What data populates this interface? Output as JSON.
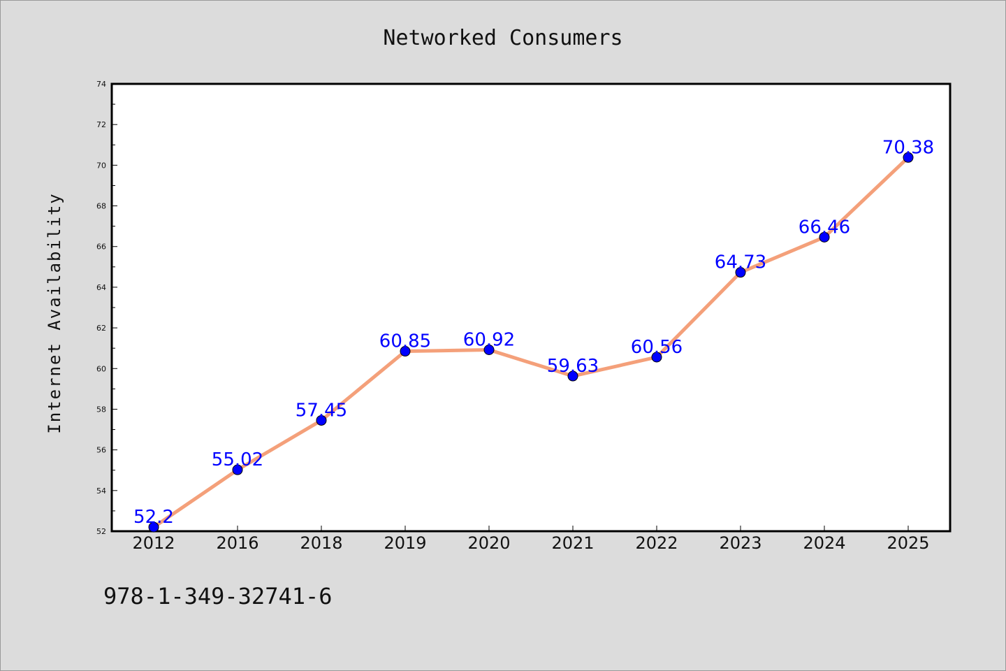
{
  "chart_data": {
    "type": "line",
    "title": "Networked Consumers",
    "xlabel": "",
    "ylabel": "Internet Availability",
    "categories": [
      "2012",
      "2016",
      "2018",
      "2019",
      "2020",
      "2021",
      "2022",
      "2023",
      "2024",
      "2025"
    ],
    "series": [
      {
        "values": [
          52.2,
          55.02,
          57.45,
          60.85,
          60.92,
          59.63,
          60.56,
          64.73,
          66.46,
          70.38
        ],
        "data_labels": [
          "52.2",
          "55.02",
          "57.45",
          "60.85",
          "60.92",
          "59.63",
          "60.56",
          "64.73",
          "66.46",
          "70.38"
        ],
        "line_color": "#f4a07a",
        "marker_color": "#0000ff",
        "label_color": "#0000ff"
      }
    ],
    "ylim": [
      52,
      74
    ],
    "yticks": [
      "52",
      "54",
      "56",
      "58",
      "60",
      "62",
      "64",
      "66",
      "68",
      "70",
      "72",
      "74"
    ],
    "grid": false,
    "legend": "none"
  },
  "footnote": "978-1-349-32741-6",
  "colors": {
    "background": "#dcdcdc",
    "plot_background": "#ffffff",
    "axis": "#000000"
  }
}
